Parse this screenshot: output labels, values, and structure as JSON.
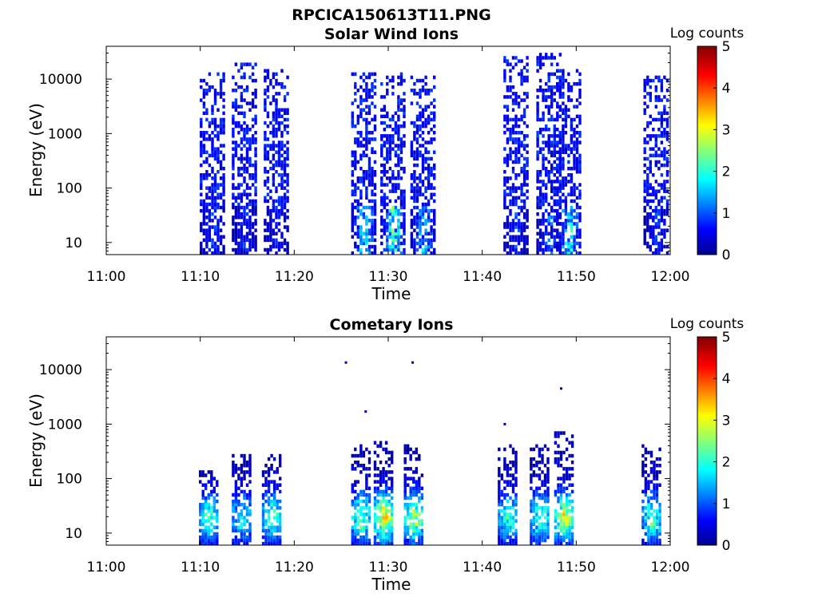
{
  "figure": {
    "title": "RPCICA150613T11.PNG"
  },
  "chart_data": [
    {
      "type": "heatmap",
      "title": "Solar Wind Ions",
      "xlabel": "Time",
      "ylabel": "Energy (eV)",
      "x_ticks": [
        "11:00",
        "11:10",
        "11:20",
        "11:30",
        "11:40",
        "11:50",
        "12:00"
      ],
      "y_ticks": [
        "10",
        "100",
        "1000",
        "10000"
      ],
      "y_scale": "log",
      "ylim": [
        6,
        40000
      ],
      "xlim": [
        "11:00",
        "12:00"
      ],
      "colorbar": {
        "label": "Log counts",
        "ticks": [
          "0",
          "1",
          "2",
          "3",
          "4",
          "5"
        ],
        "range": [
          0,
          5
        ]
      },
      "bursts": [
        {
          "t": 11.4,
          "emin": 6,
          "emax": 14000,
          "peak": 1.2,
          "sparse": 0.55
        },
        {
          "t": 14.8,
          "emin": 6,
          "emax": 20000,
          "peak": 1.1,
          "sparse": 0.55
        },
        {
          "t": 18.2,
          "emin": 6,
          "emax": 15000,
          "peak": 1.0,
          "sparse": 0.55
        },
        {
          "t": 27.5,
          "emin": 6,
          "emax": 14000,
          "peak": 2.3,
          "sparse": 0.6
        },
        {
          "t": 30.6,
          "emin": 6,
          "emax": 14000,
          "peak": 2.8,
          "sparse": 0.6
        },
        {
          "t": 33.8,
          "emin": 6,
          "emax": 12000,
          "peak": 2.0,
          "sparse": 0.6
        },
        {
          "t": 43.7,
          "emin": 6,
          "emax": 25000,
          "peak": 1.2,
          "sparse": 0.55
        },
        {
          "t": 47.2,
          "emin": 6,
          "emax": 30000,
          "peak": 1.5,
          "sparse": 0.55
        },
        {
          "t": 49.3,
          "emin": 6,
          "emax": 15000,
          "peak": 2.6,
          "sparse": 0.55
        },
        {
          "t": 58.6,
          "emin": 6,
          "emax": 12000,
          "peak": 1.1,
          "sparse": 0.55
        }
      ]
    },
    {
      "type": "heatmap",
      "title": "Cometary Ions",
      "xlabel": "Time",
      "ylabel": "Energy (eV)",
      "x_ticks": [
        "11:00",
        "11:10",
        "11:20",
        "11:30",
        "11:40",
        "11:50",
        "12:00"
      ],
      "y_ticks": [
        "10",
        "100",
        "1000",
        "10000"
      ],
      "y_scale": "log",
      "ylim": [
        6,
        40000
      ],
      "xlim": [
        "11:00",
        "12:00"
      ],
      "colorbar": {
        "label": "Log counts",
        "ticks": [
          "0",
          "1",
          "2",
          "3",
          "4",
          "5"
        ],
        "range": [
          0,
          5
        ]
      },
      "bursts": [
        {
          "t": 11.0,
          "emin": 6,
          "emax": 150,
          "peak": 2.3,
          "sparse": 0.3
        },
        {
          "t": 14.5,
          "emin": 6,
          "emax": 300,
          "peak": 2.0,
          "sparse": 0.3
        },
        {
          "t": 17.7,
          "emin": 6,
          "emax": 300,
          "peak": 2.4,
          "sparse": 0.3
        },
        {
          "t": 27.2,
          "emin": 6,
          "emax": 400,
          "peak": 2.7,
          "sparse": 0.3
        },
        {
          "t": 29.6,
          "emin": 6,
          "emax": 500,
          "peak": 3.6,
          "sparse": 0.3
        },
        {
          "t": 32.8,
          "emin": 6,
          "emax": 450,
          "peak": 3.0,
          "sparse": 0.3
        },
        {
          "t": 42.8,
          "emin": 6,
          "emax": 450,
          "peak": 2.3,
          "sparse": 0.3
        },
        {
          "t": 46.2,
          "emin": 6,
          "emax": 400,
          "peak": 2.5,
          "sparse": 0.3
        },
        {
          "t": 48.8,
          "emin": 6,
          "emax": 700,
          "peak": 3.3,
          "sparse": 0.3
        },
        {
          "t": 58.1,
          "emin": 6,
          "emax": 450,
          "peak": 2.5,
          "sparse": 0.3
        }
      ],
      "outliers": [
        {
          "t": 25.5,
          "e": 13500
        },
        {
          "t": 27.6,
          "e": 1700
        },
        {
          "t": 32.6,
          "e": 13500
        },
        {
          "t": 48.4,
          "e": 4500
        },
        {
          "t": 42.4,
          "e": 1000
        }
      ]
    }
  ]
}
